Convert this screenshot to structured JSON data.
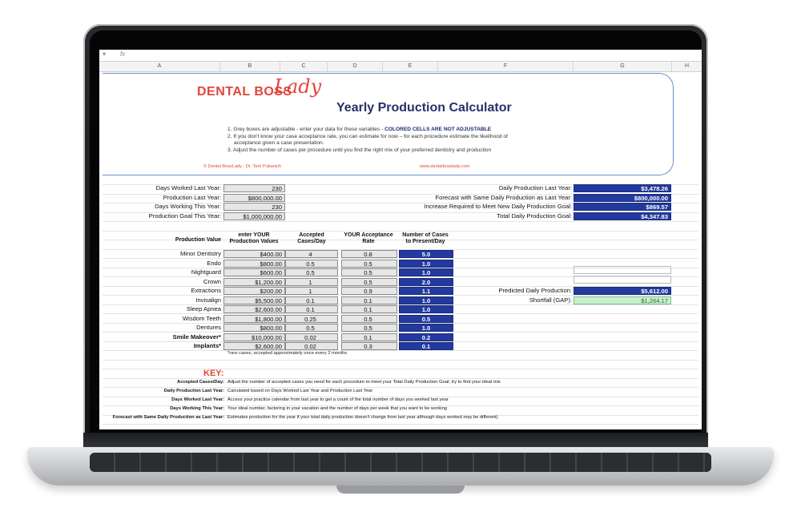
{
  "formula_bar": {
    "dropdown_icon": "chevron-down-icon",
    "fx_label": "fx"
  },
  "columns": [
    "A",
    "B",
    "C",
    "D",
    "E",
    "F",
    "G",
    "H"
  ],
  "header": {
    "logo_main": "DENTAL BOSS",
    "logo_script": "Lady",
    "title": "Yearly Production Calculator",
    "instructions": [
      "1. Grey boxes are adjustable - enter your data for these variables - ",
      "COLORED CELLS ARE NOT ADJUSTABLE",
      "2. If you don't know your case acceptance rate, you can estimate for now – for each procedure estimate the likelihood of",
      "acceptance given a case presentation.",
      "3. Adjust the number of cases per procedure until you find the right mix of your preferred dentistry and production"
    ],
    "copyright": "© Dental BossLady - Dr. Terri Pukanich",
    "website": "www.dentalbosslady.com"
  },
  "inputs": [
    {
      "label": "Days Worked Last Year:",
      "value": "230"
    },
    {
      "label": "Production Last Year:",
      "value": "$800,000.00"
    },
    {
      "label": "Days Working This Year:",
      "value": "230"
    },
    {
      "label": "Production Goal This Year:",
      "value": "$1,000,000.00"
    }
  ],
  "outputs": [
    {
      "label": "Daily Production Last Year:",
      "value": "$3,478.26"
    },
    {
      "label": "Forecast with Same Daily Production as Last Year:",
      "value": "$800,000.00"
    },
    {
      "label": "Increase Required to Meet New Daily Production Goal:",
      "value": "$869.57"
    },
    {
      "label": "Total Daily Production Goal:",
      "value": "$4,347.83"
    }
  ],
  "table": {
    "headers": [
      "Production Value",
      "enter YOUR Production Values",
      "Accepted Cases/Day",
      "YOUR Acceptance Rate",
      "Number of Cases to Present/Day"
    ],
    "rows": [
      {
        "name": "Minor Dentistry",
        "value": "$400.00",
        "cases": "4",
        "rate": "0.8",
        "present": "5.0",
        "bold": false
      },
      {
        "name": "Endo",
        "value": "$800.00",
        "cases": "0.5",
        "rate": "0.5",
        "present": "1.0",
        "bold": false
      },
      {
        "name": "Nightguard",
        "value": "$600.00",
        "cases": "0.5",
        "rate": "0.5",
        "present": "1.0",
        "bold": false
      },
      {
        "name": "Crown",
        "value": "$1,200.00",
        "cases": "1",
        "rate": "0.5",
        "present": "2.0",
        "bold": false
      },
      {
        "name": "Extractions",
        "value": "$200.00",
        "cases": "1",
        "rate": "0.9",
        "present": "1.1",
        "bold": false
      },
      {
        "name": "Invisalign",
        "value": "$5,500.00",
        "cases": "0.1",
        "rate": "0.1",
        "present": "1.0",
        "bold": false
      },
      {
        "name": "Sleep Apnea",
        "value": "$2,600.00",
        "cases": "0.1",
        "rate": "0.1",
        "present": "1.0",
        "bold": false
      },
      {
        "name": "Wisdom Teeth",
        "value": "$1,800.00",
        "cases": "0.25",
        "rate": "0.5",
        "present": "0.5",
        "bold": false
      },
      {
        "name": "Dentures",
        "value": "$800.00",
        "cases": "0.5",
        "rate": "0.5",
        "present": "1.0",
        "bold": false
      },
      {
        "name": "Smile Makeover*",
        "value": "$10,000.00",
        "cases": "0.02",
        "rate": "0.1",
        "present": "0.2",
        "bold": true
      },
      {
        "name": "Implants*",
        "value": "$2,600.00",
        "cases": "0.02",
        "rate": "0.3",
        "present": "0.1",
        "bold": true
      }
    ],
    "footnote": "*rare cases; accepted approximately once every 2 months"
  },
  "predicted": {
    "label": "Predicted Daily Production:",
    "value": "$5,612.00"
  },
  "shortfall": {
    "label": "Shortfall (GAP):",
    "value": "$1,264.17"
  },
  "key": {
    "title": "KEY:",
    "items": [
      {
        "term": "Accepted Cases/Day:",
        "desc": "Adjust the number of accepted cases you need for each procedure to meet your Total Daily Production Goal; try to find your ideal mix"
      },
      {
        "term": "Daily Production Last Year:",
        "desc": "Calculated based on Days Worked Last Year and Production Last Year"
      },
      {
        "term": "Days Worked Last Year:",
        "desc": "Access your practice calendar from last year to get a count of the total number of days you worked last year"
      },
      {
        "term": "Days Working This Year:",
        "desc": "Your ideal number, factoring in your vacation and the number of days per week that you want to be working"
      },
      {
        "term": "Forecast with Same Daily Production as Last Year:",
        "desc": "Estimates production for the year if your total daily production doesn't change from last year although days worked may be different)"
      }
    ]
  }
}
